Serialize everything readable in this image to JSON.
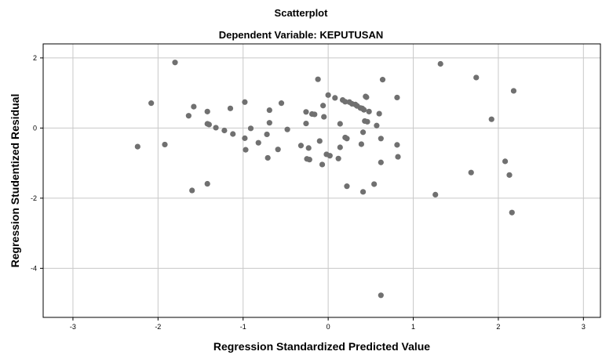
{
  "chart_data": {
    "type": "scatter",
    "title": "Scatterplot",
    "subtitle": "Dependent Variable: KEPUTUSAN",
    "xlabel": "Regression Standardized Predicted Value",
    "ylabel": "Regression Studentized Residual",
    "xlim": [
      -3.35,
      3.2
    ],
    "ylim": [
      -5.4,
      2.4
    ],
    "xticks": [
      -3,
      -2,
      -1,
      0,
      1,
      2,
      3
    ],
    "yticks": [
      -4,
      -2,
      0,
      2
    ],
    "grid": true,
    "marker_color": "#707070",
    "points": [
      {
        "x": -2.24,
        "y": -0.53
      },
      {
        "x": -2.08,
        "y": 0.71
      },
      {
        "x": -1.92,
        "y": -0.47
      },
      {
        "x": -1.8,
        "y": 1.87
      },
      {
        "x": -1.64,
        "y": 0.35
      },
      {
        "x": -1.6,
        "y": -1.78
      },
      {
        "x": -1.58,
        "y": 0.61
      },
      {
        "x": -1.42,
        "y": 0.47
      },
      {
        "x": -1.42,
        "y": 0.12
      },
      {
        "x": -1.4,
        "y": 0.1
      },
      {
        "x": -1.42,
        "y": -1.59
      },
      {
        "x": -1.32,
        "y": 0.01
      },
      {
        "x": -1.22,
        "y": -0.07
      },
      {
        "x": -1.15,
        "y": 0.56
      },
      {
        "x": -1.12,
        "y": -0.17
      },
      {
        "x": -0.98,
        "y": 0.74
      },
      {
        "x": -0.98,
        "y": -0.29
      },
      {
        "x": -0.97,
        "y": -0.62
      },
      {
        "x": -0.91,
        "y": -0.01
      },
      {
        "x": -0.82,
        "y": -0.42
      },
      {
        "x": -0.72,
        "y": -0.18
      },
      {
        "x": -0.71,
        "y": -0.85
      },
      {
        "x": -0.69,
        "y": 0.51
      },
      {
        "x": -0.69,
        "y": 0.15
      },
      {
        "x": -0.59,
        "y": -0.61
      },
      {
        "x": -0.55,
        "y": 0.71
      },
      {
        "x": -0.48,
        "y": -0.04
      },
      {
        "x": -0.32,
        "y": -0.5
      },
      {
        "x": -0.26,
        "y": 0.46
      },
      {
        "x": -0.26,
        "y": 0.13
      },
      {
        "x": -0.25,
        "y": -0.88
      },
      {
        "x": -0.22,
        "y": -0.9
      },
      {
        "x": -0.23,
        "y": -0.57
      },
      {
        "x": -0.19,
        "y": 0.4
      },
      {
        "x": -0.16,
        "y": 0.39
      },
      {
        "x": -0.12,
        "y": 1.39
      },
      {
        "x": -0.1,
        "y": -0.37
      },
      {
        "x": -0.07,
        "y": -1.04
      },
      {
        "x": -0.06,
        "y": 0.64
      },
      {
        "x": -0.05,
        "y": 0.32
      },
      {
        "x": -0.02,
        "y": -0.75
      },
      {
        "x": 0.0,
        "y": 0.94
      },
      {
        "x": 0.02,
        "y": -0.79
      },
      {
        "x": 0.08,
        "y": 0.86
      },
      {
        "x": 0.12,
        "y": -0.87
      },
      {
        "x": 0.14,
        "y": -0.55
      },
      {
        "x": 0.14,
        "y": 0.12
      },
      {
        "x": 0.17,
        "y": 0.8
      },
      {
        "x": 0.2,
        "y": 0.75
      },
      {
        "x": 0.2,
        "y": -0.27
      },
      {
        "x": 0.22,
        "y": -0.3
      },
      {
        "x": 0.22,
        "y": -1.66
      },
      {
        "x": 0.25,
        "y": 0.74
      },
      {
        "x": 0.28,
        "y": 0.69
      },
      {
        "x": 0.32,
        "y": 0.67
      },
      {
        "x": 0.34,
        "y": 0.63
      },
      {
        "x": 0.38,
        "y": 0.57
      },
      {
        "x": 0.39,
        "y": -0.46
      },
      {
        "x": 0.4,
        "y": 0.56
      },
      {
        "x": 0.41,
        "y": -0.12
      },
      {
        "x": 0.41,
        "y": -1.82
      },
      {
        "x": 0.42,
        "y": 0.52
      },
      {
        "x": 0.43,
        "y": 0.2
      },
      {
        "x": 0.44,
        "y": 0.9
      },
      {
        "x": 0.45,
        "y": 0.88
      },
      {
        "x": 0.46,
        "y": 0.18
      },
      {
        "x": 0.48,
        "y": 0.47
      },
      {
        "x": 0.54,
        "y": -1.6
      },
      {
        "x": 0.57,
        "y": 0.07
      },
      {
        "x": 0.6,
        "y": 0.41
      },
      {
        "x": 0.62,
        "y": -0.3
      },
      {
        "x": 0.62,
        "y": -0.98
      },
      {
        "x": 0.62,
        "y": -4.77
      },
      {
        "x": 0.64,
        "y": 1.38
      },
      {
        "x": 0.81,
        "y": 0.87
      },
      {
        "x": 0.81,
        "y": -0.48
      },
      {
        "x": 0.82,
        "y": -0.82
      },
      {
        "x": 1.26,
        "y": -1.9
      },
      {
        "x": 1.32,
        "y": 1.83
      },
      {
        "x": 1.68,
        "y": -1.27
      },
      {
        "x": 1.74,
        "y": 1.44
      },
      {
        "x": 1.92,
        "y": 0.25
      },
      {
        "x": 2.08,
        "y": -0.95
      },
      {
        "x": 2.13,
        "y": -1.34
      },
      {
        "x": 2.16,
        "y": -2.41
      },
      {
        "x": 2.18,
        "y": 1.06
      }
    ]
  }
}
